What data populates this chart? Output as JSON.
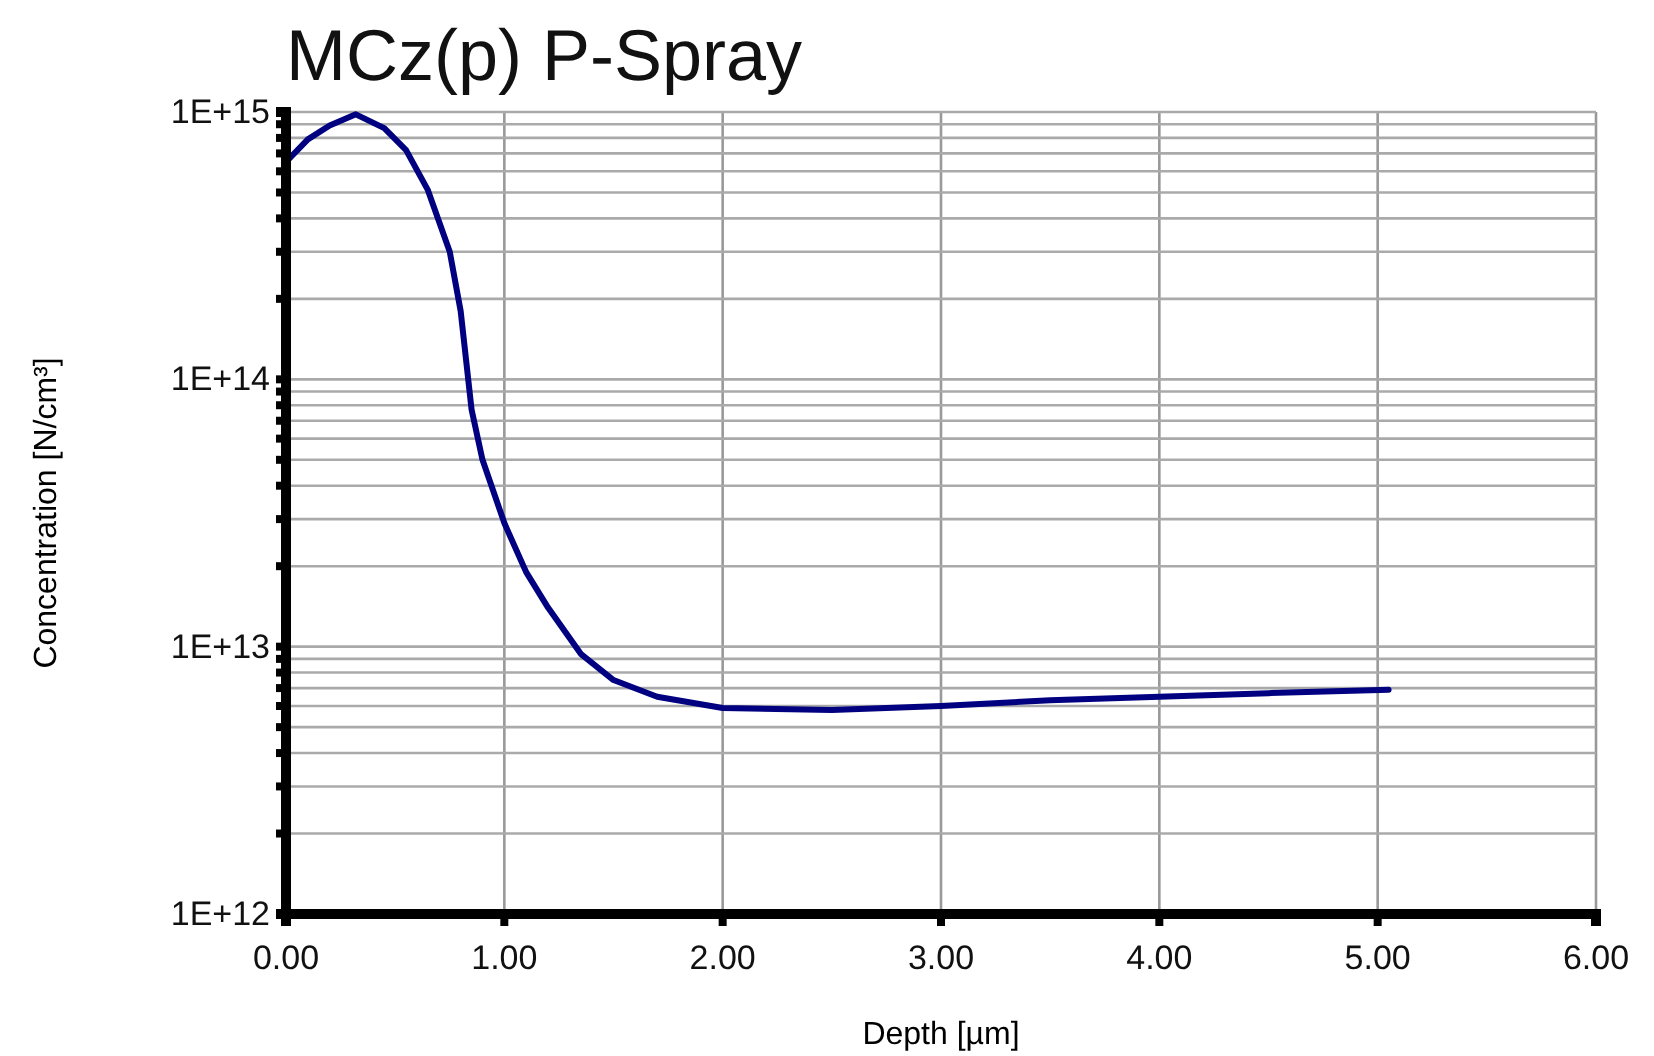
{
  "chart_data": {
    "type": "line",
    "title": "MCz(p) P-Spray",
    "xlabel": "Depth [µm]",
    "ylabel": "Concentration [N/cm³]",
    "log": "y",
    "grid": true,
    "marker": "none",
    "line_style": "solid",
    "xlim": [
      0,
      6
    ],
    "xticks": [
      {
        "value": 0,
        "label": "0.00"
      },
      {
        "value": 1,
        "label": "1.00"
      },
      {
        "value": 2,
        "label": "2.00"
      },
      {
        "value": 3,
        "label": "3.00"
      },
      {
        "value": 4,
        "label": "4.00"
      },
      {
        "value": 5,
        "label": "5.00"
      },
      {
        "value": 6,
        "label": "6.00"
      }
    ],
    "ylim": [
      1000000000000.0,
      1000000000000000.0
    ],
    "yticks": [
      {
        "value": 1000000000000.0,
        "label": "1E+12"
      },
      {
        "value": 2000000000000.0,
        "label": null
      },
      {
        "value": 3000000000000.0,
        "label": null
      },
      {
        "value": 4000000000000.0,
        "label": null
      },
      {
        "value": 5000000000000.0,
        "label": null
      },
      {
        "value": 6000000000000.0,
        "label": null
      },
      {
        "value": 7000000000000.0,
        "label": null
      },
      {
        "value": 8000000000000.0,
        "label": null
      },
      {
        "value": 9000000000000.0,
        "label": null
      },
      {
        "value": 10000000000000.0,
        "label": "1E+13"
      },
      {
        "value": 20000000000000.0,
        "label": null
      },
      {
        "value": 30000000000000.0,
        "label": null
      },
      {
        "value": 40000000000000.0,
        "label": null
      },
      {
        "value": 50000000000000.0,
        "label": null
      },
      {
        "value": 60000000000000.0,
        "label": null
      },
      {
        "value": 70000000000000.0,
        "label": null
      },
      {
        "value": 80000000000000.0,
        "label": null
      },
      {
        "value": 90000000000000.0,
        "label": null
      },
      {
        "value": 100000000000000.0,
        "label": "1E+14"
      },
      {
        "value": 200000000000000.0,
        "label": null
      },
      {
        "value": 300000000000000.0,
        "label": null
      },
      {
        "value": 400000000000000.0,
        "label": null
      },
      {
        "value": 500000000000000.0,
        "label": null
      },
      {
        "value": 600000000000000.0,
        "label": null
      },
      {
        "value": 700000000000000.0,
        "label": null
      },
      {
        "value": 800000000000000.0,
        "label": null
      },
      {
        "value": 900000000000000.0,
        "label": null
      },
      {
        "value": 1000000000000000.0,
        "label": "1E+15"
      }
    ],
    "x": [
      0,
      0.1,
      0.2,
      0.32,
      0.45,
      0.55,
      0.65,
      0.75,
      0.8,
      0.85,
      0.9,
      1.0,
      1.1,
      1.2,
      1.35,
      1.5,
      1.7,
      2.0,
      2.5,
      3.0,
      3.5,
      4.0,
      4.5,
      5.05
    ],
    "series": [
      {
        "color": "#000080",
        "values": [
          650000000000000.0,
          790000000000000.0,
          890000000000000.0,
          980000000000000.0,
          870000000000000.0,
          720000000000000.0,
          510000000000000.0,
          300000000000000.0,
          180000000000000.0,
          77000000000000.0,
          50000000000000.0,
          29000000000000.0,
          19000000000000.0,
          14000000000000.0,
          9400000000000.0,
          7500000000000.0,
          6500000000000.0,
          5900000000000.0,
          5800000000000.0,
          6000000000000.0,
          6300000000000.0,
          6500000000000.0,
          6700000000000.0,
          6900000000000.0
        ]
      }
    ]
  }
}
